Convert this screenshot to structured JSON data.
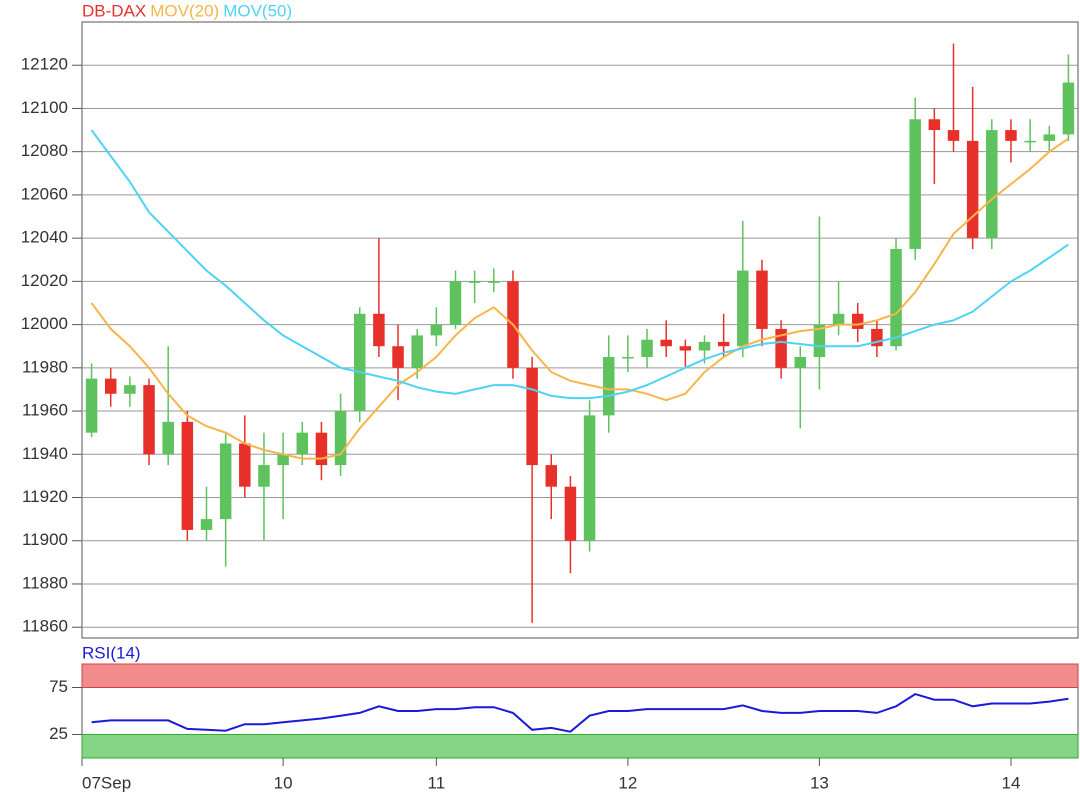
{
  "chart_data": [
    {
      "type": "candlestick",
      "xlim": [
        0,
        52
      ],
      "xticks": [
        {
          "value": 0,
          "label": "07Sep"
        },
        {
          "value": 10.5,
          "label": "10"
        },
        {
          "value": 18.5,
          "label": "11"
        },
        {
          "value": 28.5,
          "label": "12"
        },
        {
          "value": 38.5,
          "label": "13"
        },
        {
          "value": 48.5,
          "label": "14"
        }
      ],
      "ylim": [
        11855,
        12140
      ],
      "yticks": [
        11860,
        11880,
        11900,
        11920,
        11940,
        11960,
        11980,
        12000,
        12020,
        12040,
        12060,
        12080,
        12100,
        12120
      ],
      "grid": true,
      "up_color": "#5ec25e",
      "down_color": "#e8302a",
      "series": [
        {
          "name": "DB-DAX",
          "color": "#e8302a",
          "open": [
            11950,
            11975,
            11968,
            11972,
            11940,
            11955,
            11905,
            11910,
            11945,
            11925,
            11935,
            11940,
            11950,
            11935,
            11960,
            12005,
            11990,
            11980,
            11995,
            12000,
            12020,
            12020,
            12020,
            11980,
            11935,
            11925,
            11900,
            11958,
            11985,
            11985,
            11993,
            11990,
            11988,
            11992,
            11990,
            12025,
            11998,
            11980,
            11985,
            12000,
            12005,
            11998,
            11990,
            12035,
            12095,
            12090,
            12085,
            12040,
            12090,
            12085,
            12085,
            12088
          ],
          "high": [
            11982,
            11980,
            11976,
            11975,
            11990,
            11960,
            11925,
            11950,
            11958,
            11950,
            11950,
            11955,
            11955,
            11968,
            12008,
            12040,
            12000,
            11998,
            12008,
            12025,
            12025,
            12026,
            12025,
            11985,
            11940,
            11930,
            11965,
            11995,
            11995,
            11998,
            12002,
            11993,
            11995,
            12005,
            12048,
            12030,
            12002,
            11990,
            12050,
            12020,
            12010,
            12002,
            12040,
            12105,
            12100,
            12130,
            12110,
            12095,
            12095,
            12095,
            12092,
            12125
          ],
          "low": [
            11948,
            11962,
            11962,
            11935,
            11935,
            11900,
            11900,
            11888,
            11920,
            11900,
            11910,
            11935,
            11928,
            11930,
            11955,
            11985,
            11965,
            11975,
            11990,
            11998,
            12010,
            12015,
            11975,
            11862,
            11910,
            11885,
            11895,
            11950,
            11978,
            11980,
            11985,
            11980,
            11982,
            11985,
            11985,
            11990,
            11975,
            11952,
            11970,
            11995,
            11992,
            11985,
            11988,
            12030,
            12065,
            12080,
            12035,
            12035,
            12075,
            12080,
            12080,
            12085
          ],
          "close": [
            11975,
            11968,
            11972,
            11940,
            11955,
            11905,
            11910,
            11945,
            11925,
            11935,
            11940,
            11950,
            11935,
            11960,
            12005,
            11990,
            11980,
            11995,
            12000,
            12020,
            12020,
            12020,
            11980,
            11935,
            11925,
            11900,
            11958,
            11985,
            11985,
            11993,
            11990,
            11988,
            11992,
            11990,
            12025,
            11998,
            11980,
            11985,
            12000,
            12005,
            11998,
            11990,
            12035,
            12095,
            12090,
            12085,
            12040,
            12090,
            12085,
            12085,
            12088,
            12112
          ]
        },
        {
          "name": "MOV(20)",
          "color": "#f7b54a",
          "values": [
            12010,
            11998,
            11990,
            11980,
            11968,
            11958,
            11953,
            11950,
            11945,
            11942,
            11940,
            11938,
            11938,
            11940,
            11952,
            11962,
            11972,
            11978,
            11985,
            11995,
            12003,
            12008,
            12000,
            11988,
            11978,
            11974,
            11972,
            11970,
            11970,
            11968,
            11965,
            11968,
            11978,
            11985,
            11990,
            11993,
            11995,
            11997,
            11998,
            12000,
            12000,
            12002,
            12005,
            12015,
            12028,
            12042,
            12050,
            12058,
            12065,
            12072,
            12080,
            12086
          ]
        },
        {
          "name": "MOV(50)",
          "color": "#4fd3f5",
          "values": [
            12090,
            12078,
            12066,
            12052,
            12043,
            12034,
            12025,
            12018,
            12010,
            12002,
            11995,
            11990,
            11985,
            11980,
            11978,
            11976,
            11974,
            11971,
            11969,
            11968,
            11970,
            11972,
            11972,
            11970,
            11967,
            11966,
            11966,
            11967,
            11969,
            11972,
            11976,
            11980,
            11984,
            11987,
            11989,
            11991,
            11992,
            11991,
            11990,
            11990,
            11990,
            11992,
            11994,
            11997,
            12000,
            12002,
            12006,
            12013,
            12020,
            12025,
            12031,
            12037
          ]
        }
      ]
    },
    {
      "type": "line",
      "ylim": [
        0,
        100
      ],
      "yticks": [
        25,
        75
      ],
      "series": [
        {
          "name": "RSI(14)",
          "color": "#1a1ad8",
          "values": [
            38,
            40,
            40,
            40,
            40,
            31,
            30,
            29,
            36,
            36,
            38,
            40,
            42,
            45,
            48,
            55,
            50,
            50,
            52,
            52,
            54,
            54,
            48,
            30,
            32,
            28,
            45,
            50,
            50,
            52,
            52,
            52,
            52,
            52,
            56,
            50,
            48,
            48,
            50,
            50,
            50,
            48,
            55,
            68,
            62,
            62,
            55,
            58,
            58,
            58,
            60,
            63
          ]
        }
      ]
    }
  ]
}
